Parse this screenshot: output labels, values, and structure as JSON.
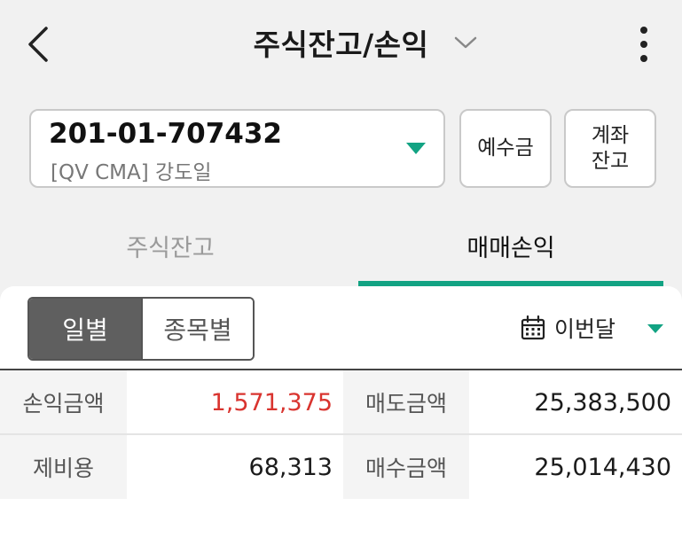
{
  "header": {
    "title": "주식잔고/손익"
  },
  "account": {
    "number": "201-01-707432",
    "type_and_owner": "[QV CMA]  강도일"
  },
  "buttons": {
    "deposit": "예수금",
    "account_balance": "계좌\n잔고"
  },
  "tabs": [
    {
      "label": "주식잔고",
      "active": false
    },
    {
      "label": "매매손익",
      "active": true
    }
  ],
  "segment": {
    "daily": "일별",
    "by_stock": "종목별",
    "selected": "일별"
  },
  "period": {
    "selected": "이번달"
  },
  "summary": {
    "profit_label": "손익금액",
    "profit_value": "1,571,375",
    "sell_label": "매도금액",
    "sell_value": "25,383,500",
    "fee_label": "제비용",
    "fee_value": "68,313",
    "buy_label": "매수금액",
    "buy_value": "25,014,430"
  },
  "colors": {
    "accent": "#12a383",
    "profit_positive": "#d9342f"
  },
  "icons": [
    "back-arrow-icon",
    "chevron-down-icon",
    "more-vertical-icon",
    "dropdown-triangle-icon",
    "calendar-icon"
  ]
}
